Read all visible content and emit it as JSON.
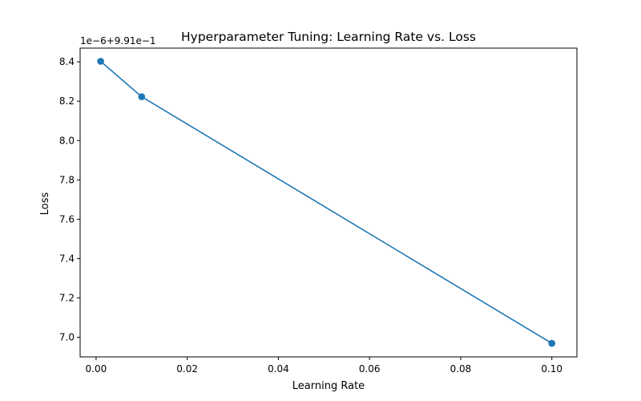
{
  "chart_data": {
    "type": "line",
    "title": "Hyperparameter Tuning: Learning Rate vs. Loss",
    "xlabel": "Learning Rate",
    "ylabel": "Loss",
    "y_offset_text": "1e−6+9.91e−1",
    "xlim": [
      -0.0035,
      0.1055
    ],
    "ylim": [
      6.9,
      8.47
    ],
    "x_ticks": [
      0.0,
      0.02,
      0.04,
      0.06,
      0.08,
      0.1
    ],
    "x_tick_labels": [
      "0.00",
      "0.02",
      "0.04",
      "0.06",
      "0.08",
      "0.10"
    ],
    "y_ticks": [
      7.0,
      7.2,
      7.4,
      7.6,
      7.8,
      8.0,
      8.2,
      8.4
    ],
    "y_tick_labels": [
      "7.0",
      "7.2",
      "7.4",
      "7.6",
      "7.8",
      "8.0",
      "8.2",
      "8.4"
    ],
    "grid": false,
    "legend": "none",
    "series": [
      {
        "color": "#1f77b4",
        "marker": "circle",
        "x": [
          0.001,
          0.01,
          0.1
        ],
        "y": [
          8.403,
          8.223,
          6.969
        ]
      }
    ]
  }
}
